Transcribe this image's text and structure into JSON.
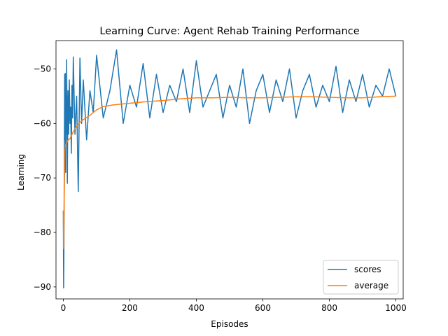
{
  "chart_data": {
    "type": "line",
    "title": "Learning Curve: Agent Rehab Training Performance",
    "xlabel": "Episodes",
    "ylabel": "Learning",
    "xlim": [
      -22,
      1022
    ],
    "ylim": [
      -92.2,
      -44.8
    ],
    "x_ticks": [
      0,
      200,
      400,
      600,
      800,
      1000
    ],
    "y_ticks": [
      -90,
      -80,
      -70,
      -60,
      -50
    ],
    "x_tick_labels": [
      "0",
      "200",
      "400",
      "600",
      "800",
      "1000"
    ],
    "y_tick_labels": [
      "−90",
      "−80",
      "−70",
      "−60",
      "−50"
    ],
    "grid": false,
    "legend_position": "lower-right",
    "series": [
      {
        "name": "scores",
        "color": "#1f77b4",
        "x": [
          0,
          1,
          2,
          3,
          4,
          5,
          6,
          7,
          8,
          9,
          10,
          12,
          14,
          16,
          18,
          20,
          22,
          24,
          26,
          28,
          30,
          35,
          40,
          45,
          50,
          55,
          60,
          70,
          80,
          90,
          100,
          120,
          140,
          160,
          180,
          200,
          220,
          240,
          260,
          280,
          300,
          320,
          340,
          360,
          380,
          400,
          420,
          440,
          460,
          480,
          500,
          520,
          540,
          560,
          580,
          600,
          620,
          640,
          660,
          680,
          700,
          720,
          740,
          760,
          780,
          800,
          820,
          840,
          860,
          880,
          900,
          920,
          940,
          960,
          980,
          1000
        ],
        "y": [
          -76,
          -90.2,
          -82,
          -65,
          -51,
          -63,
          -50.8,
          -69,
          -55,
          -62,
          -48.3,
          -71,
          -54,
          -62,
          -52,
          -60,
          -57,
          -65.5,
          -53,
          -59,
          -47.8,
          -62,
          -55,
          -72.5,
          -48,
          -60,
          -52,
          -63,
          -54,
          -58,
          -47.5,
          -59,
          -54,
          -46.5,
          -60,
          -53,
          -57,
          -49,
          -59,
          -51,
          -58,
          -53,
          -56,
          -50,
          -58,
          -48.5,
          -57,
          -54,
          -51,
          -59,
          -53,
          -57,
          -50,
          -60,
          -54,
          -51,
          -58,
          -52,
          -56,
          -50,
          -59,
          -54,
          -51,
          -57,
          -53,
          -56,
          -49.5,
          -58,
          -52,
          -56,
          -51,
          -57,
          -53,
          -55,
          -50,
          -55
        ]
      },
      {
        "name": "average",
        "color": "#ff7f0e",
        "x": [
          0,
          1,
          2,
          3,
          4,
          5,
          7,
          10,
          15,
          20,
          30,
          40,
          50,
          60,
          80,
          100,
          120,
          150,
          200,
          250,
          300,
          350,
          400,
          450,
          500,
          550,
          600,
          650,
          700,
          750,
          800,
          850,
          900,
          950,
          1000
        ],
        "y": [
          -76,
          -83,
          -78,
          -72,
          -66,
          -64.5,
          -64,
          -63.5,
          -63,
          -62.8,
          -61.5,
          -60.5,
          -59.8,
          -59.3,
          -58.5,
          -57.5,
          -56.9,
          -56.6,
          -56.3,
          -56.0,
          -55.8,
          -55.5,
          -55.3,
          -55.3,
          -55.2,
          -55.3,
          -55.3,
          -55.2,
          -55.1,
          -55.1,
          -55.2,
          -55.3,
          -55.3,
          -55.1,
          -55.0
        ]
      }
    ]
  }
}
